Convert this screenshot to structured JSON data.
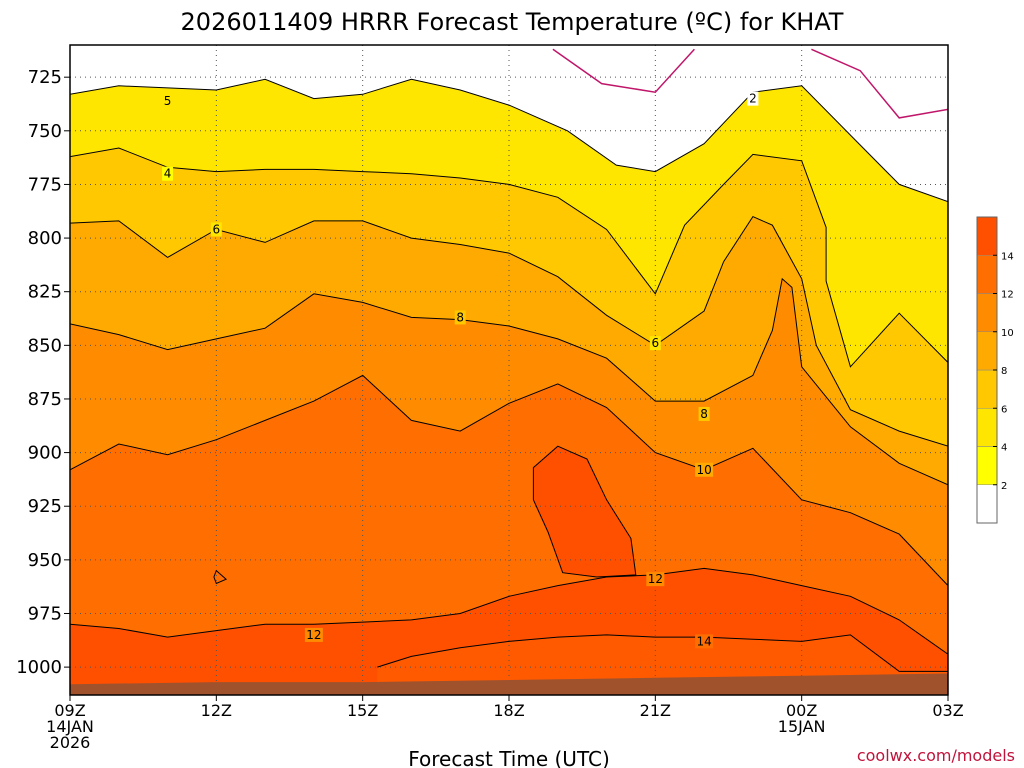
{
  "chart_data": {
    "type": "heatmap",
    "title": "2026011409 HRRR Forecast Temperature (ºC) for KHAT",
    "xlabel": "Forecast Time (UTC)",
    "ylabel": "",
    "credit": "coolwx.com/models",
    "x_ticks": [
      {
        "h": 0,
        "lines": [
          "09Z",
          "14JAN",
          "2026"
        ]
      },
      {
        "h": 3,
        "lines": [
          "12Z"
        ]
      },
      {
        "h": 6,
        "lines": [
          "15Z"
        ]
      },
      {
        "h": 9,
        "lines": [
          "18Z"
        ]
      },
      {
        "h": 12,
        "lines": [
          "21Z"
        ]
      },
      {
        "h": 15,
        "lines": [
          "00Z",
          "15JAN"
        ]
      },
      {
        "h": 18,
        "lines": [
          "03Z"
        ]
      }
    ],
    "y_ticks": [
      725,
      750,
      775,
      800,
      825,
      850,
      875,
      900,
      925,
      950,
      975,
      1000
    ],
    "xlim": [
      0,
      18
    ],
    "ylim": [
      1013,
      710
    ],
    "y_axis": "pressure (hPa), inverted",
    "colorbar": {
      "levels": [
        2,
        4,
        6,
        8,
        10,
        12,
        14
      ],
      "colors": [
        "#ffffff",
        "#ffff00",
        "#ffe600",
        "#ffc800",
        "#ffaa00",
        "#ff8c00",
        "#ff6e00",
        "#ff5000"
      ],
      "labels": [
        "2",
        "4",
        "6",
        "8",
        "10",
        "12",
        "14"
      ]
    },
    "contour_labels": [
      {
        "t": 5,
        "h": 2.0,
        "p": 736
      },
      {
        "t": 4,
        "h": 2.0,
        "p": 770
      },
      {
        "t": 6,
        "h": 3.0,
        "p": 796
      },
      {
        "t": 8,
        "h": 8.0,
        "p": 837
      },
      {
        "t": 6,
        "h": 12.0,
        "p": 849
      },
      {
        "t": 8,
        "h": 13.0,
        "p": 882
      },
      {
        "t": 10,
        "h": 13.0,
        "p": 908
      },
      {
        "t": 12,
        "h": 12.0,
        "p": 959
      },
      {
        "t": 12,
        "h": 5.0,
        "p": 985
      },
      {
        "t": 14,
        "h": 13.0,
        "p": 988
      },
      {
        "t": 2,
        "h": 14.0,
        "p": 735
      }
    ],
    "isotherms": [
      {
        "level": 0,
        "points": [
          [
            9.9,
            712
          ],
          [
            10.9,
            728
          ],
          [
            12.0,
            732
          ],
          [
            12.8,
            712
          ]
        ]
      },
      {
        "level": 0,
        "points": [
          [
            15.2,
            712
          ],
          [
            16.2,
            722
          ],
          [
            17.0,
            744
          ],
          [
            18.0,
            740
          ]
        ]
      },
      {
        "level": 2,
        "points": [
          [
            0,
            733
          ],
          [
            1,
            729
          ],
          [
            2,
            730
          ],
          [
            3,
            731
          ],
          [
            4,
            726
          ],
          [
            5,
            735
          ],
          [
            6,
            733
          ],
          [
            7,
            726
          ],
          [
            8,
            731
          ],
          [
            9,
            738
          ],
          [
            10.2,
            750
          ],
          [
            11.2,
            766
          ],
          [
            12,
            769
          ],
          [
            13,
            756
          ],
          [
            14.0,
            732
          ],
          [
            15,
            729
          ],
          [
            16,
            752
          ],
          [
            17,
            775
          ],
          [
            18,
            783
          ]
        ]
      },
      {
        "level": 4,
        "points": [
          [
            0,
            762
          ],
          [
            1,
            758
          ],
          [
            2,
            767
          ],
          [
            3,
            769
          ],
          [
            4,
            768
          ],
          [
            5,
            768
          ],
          [
            6,
            769
          ],
          [
            7,
            770
          ],
          [
            8,
            772
          ],
          [
            9,
            775
          ],
          [
            10.0,
            781
          ],
          [
            11.0,
            796
          ],
          [
            12,
            826
          ],
          [
            12.6,
            794
          ],
          [
            13.4,
            775
          ],
          [
            14,
            761
          ],
          [
            15,
            764
          ],
          [
            15.5,
            795
          ],
          [
            15.5,
            820
          ],
          [
            16.0,
            860
          ],
          [
            17,
            835
          ],
          [
            18,
            858
          ]
        ]
      },
      {
        "level": 6,
        "points": [
          [
            0,
            793
          ],
          [
            1,
            792
          ],
          [
            2,
            809
          ],
          [
            3,
            796
          ],
          [
            4,
            802
          ],
          [
            5,
            792
          ],
          [
            6,
            792
          ],
          [
            7,
            800
          ],
          [
            8,
            803
          ],
          [
            9,
            807
          ],
          [
            10.0,
            818
          ],
          [
            11.0,
            836
          ],
          [
            12,
            850
          ],
          [
            13,
            834
          ],
          [
            13.4,
            811
          ],
          [
            14,
            790
          ],
          [
            14.4,
            794
          ],
          [
            15,
            819
          ],
          [
            15.3,
            850
          ],
          [
            16,
            880
          ],
          [
            17,
            890
          ],
          [
            18,
            897
          ]
        ]
      },
      {
        "level": 8,
        "points": [
          [
            0,
            840
          ],
          [
            1,
            845
          ],
          [
            2,
            852
          ],
          [
            3,
            847
          ],
          [
            4,
            842
          ],
          [
            5,
            826
          ],
          [
            6,
            830
          ],
          [
            7,
            837
          ],
          [
            8,
            838
          ],
          [
            9,
            841
          ],
          [
            10,
            847
          ],
          [
            11,
            856
          ],
          [
            12,
            876
          ],
          [
            13,
            876
          ],
          [
            14,
            864
          ],
          [
            14.4,
            843
          ],
          [
            14.6,
            819
          ],
          [
            14.8,
            823
          ],
          [
            15,
            860
          ],
          [
            16,
            888
          ],
          [
            17,
            905
          ],
          [
            18,
            915
          ]
        ]
      },
      {
        "level": 10,
        "points": [
          [
            0,
            908
          ],
          [
            1,
            896
          ],
          [
            2,
            901
          ],
          [
            3,
            894
          ],
          [
            4,
            885
          ],
          [
            5,
            876
          ],
          [
            6,
            864
          ],
          [
            7,
            885
          ],
          [
            8,
            890
          ],
          [
            9,
            877
          ],
          [
            10,
            868
          ],
          [
            11,
            879
          ],
          [
            12,
            900
          ],
          [
            13,
            908
          ],
          [
            14,
            898
          ],
          [
            15,
            922
          ],
          [
            16,
            928
          ],
          [
            17,
            938
          ],
          [
            18,
            962
          ]
        ]
      },
      {
        "level": 12,
        "points": [
          [
            0,
            980
          ],
          [
            1,
            982
          ],
          [
            2,
            986
          ],
          [
            3,
            983
          ],
          [
            4,
            980
          ],
          [
            5,
            980
          ],
          [
            6,
            979
          ],
          [
            7,
            978
          ],
          [
            8,
            975
          ],
          [
            9,
            967
          ],
          [
            10,
            962
          ],
          [
            11,
            958
          ],
          [
            12,
            957
          ],
          [
            13,
            954
          ],
          [
            14,
            957
          ],
          [
            15,
            962
          ],
          [
            16,
            967
          ],
          [
            17,
            978
          ],
          [
            18,
            994
          ]
        ]
      },
      {
        "level": 12,
        "points": [
          [
            10.1,
            956
          ],
          [
            9.8,
            937
          ],
          [
            9.5,
            922
          ],
          [
            9.5,
            907
          ],
          [
            10.0,
            897
          ],
          [
            10.6,
            903
          ],
          [
            11.0,
            922
          ],
          [
            11.5,
            940
          ],
          [
            11.6,
            957
          ],
          [
            10.8,
            958
          ]
        ]
      },
      {
        "level": 14,
        "points": [
          [
            6.3,
            1000
          ],
          [
            7,
            995
          ],
          [
            8,
            991
          ],
          [
            9,
            988
          ],
          [
            10,
            986
          ],
          [
            11,
            985
          ],
          [
            12,
            986
          ],
          [
            13,
            986
          ],
          [
            14,
            987
          ],
          [
            15,
            988
          ],
          [
            16,
            985
          ],
          [
            17,
            1002
          ],
          [
            18,
            1002
          ]
        ]
      }
    ],
    "ground_pressure": [
      [
        0,
        1008
      ],
      [
        3,
        1007
      ],
      [
        6,
        1007
      ],
      [
        9,
        1006
      ],
      [
        12,
        1005
      ],
      [
        15,
        1004
      ],
      [
        18,
        1003
      ]
    ]
  }
}
